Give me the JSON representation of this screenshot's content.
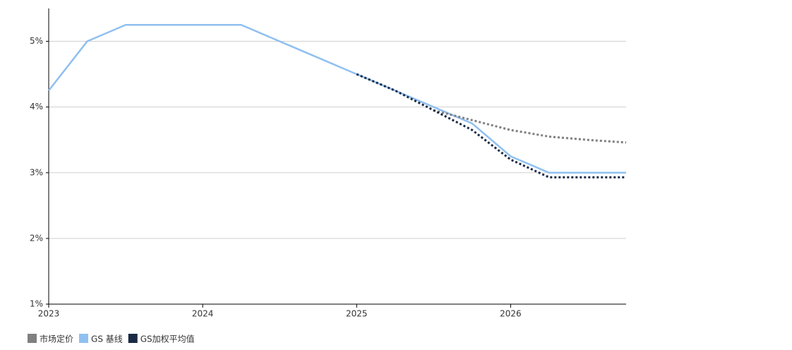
{
  "chart_data": {
    "type": "line",
    "x": [
      2023,
      2023.25,
      2023.5,
      2023.75,
      2024,
      2024.25,
      2024.5,
      2024.75,
      2025,
      2025.25,
      2025.5,
      2025.75,
      2026,
      2026.25,
      2026.5,
      2026.75
    ],
    "series": [
      {
        "name": "市场定价",
        "color": "#808080",
        "dash": true,
        "values": [
          null,
          null,
          null,
          null,
          null,
          null,
          null,
          null,
          null,
          null,
          3.95,
          3.8,
          3.65,
          3.55,
          3.5,
          3.46
        ]
      },
      {
        "name": "GS 基线",
        "color": "#90c0f0",
        "dash": false,
        "values": [
          4.25,
          5.0,
          5.25,
          5.25,
          5.25,
          5.25,
          5.0,
          4.75,
          4.5,
          4.25,
          4.0,
          3.75,
          3.25,
          3.0,
          3.0,
          3.0
        ]
      },
      {
        "name": "GS加权平均值",
        "color": "#1a2a44",
        "dash": true,
        "values": [
          null,
          null,
          null,
          null,
          null,
          null,
          null,
          null,
          4.5,
          4.25,
          3.95,
          3.65,
          3.2,
          2.93,
          2.93,
          2.93
        ]
      }
    ],
    "xlim": [
      2023,
      2026.75
    ],
    "xticks": [
      2023,
      2024,
      2025,
      2026
    ],
    "ylim": [
      1,
      5.5
    ],
    "yticks": [
      {
        "value": 1,
        "label": "1%"
      },
      {
        "value": 2,
        "label": "2%"
      },
      {
        "value": 3,
        "label": "3%"
      },
      {
        "value": 4,
        "label": "4%"
      },
      {
        "value": 5,
        "label": "5%"
      }
    ],
    "grid": true
  }
}
